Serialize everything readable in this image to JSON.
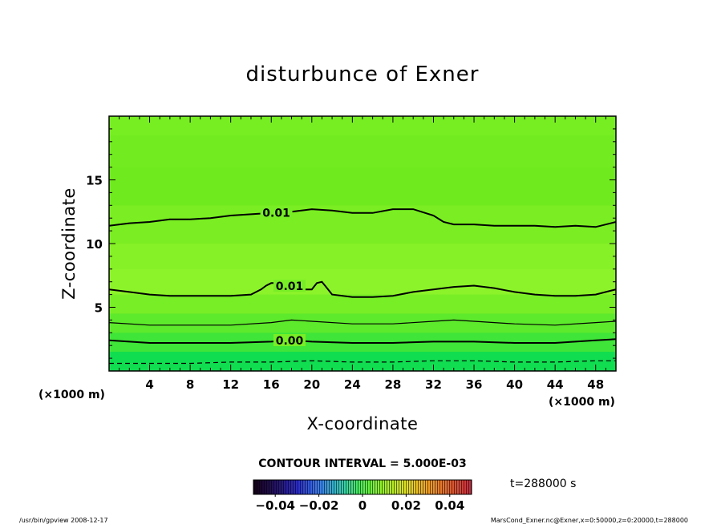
{
  "chart_data": {
    "type": "heatmap",
    "title": "disturbunce of Exner",
    "xlabel": "X-coordinate",
    "ylabel": "Z-coordinate",
    "x_unit": "(×1000 m)",
    "y_unit": "(×1000 m)",
    "xlim": [
      0,
      50
    ],
    "ylim": [
      0,
      20
    ],
    "x_ticks": [
      4,
      8,
      12,
      16,
      20,
      24,
      28,
      32,
      36,
      40,
      44,
      48
    ],
    "y_ticks": [
      5,
      10,
      15
    ],
    "contour_interval_text": "CONTOUR INTERVAL = 5.000E-03",
    "time_text": "t=288000 s",
    "contours": [
      {
        "label": "0.01",
        "level": 0.01,
        "style": "solid",
        "x": [
          0,
          2,
          4,
          6,
          8,
          10,
          12,
          14,
          16,
          18,
          20,
          22,
          24,
          26,
          28,
          30,
          32,
          33,
          34,
          36,
          38,
          40,
          42,
          44,
          46,
          48,
          50
        ],
        "y": [
          11.4,
          11.6,
          11.7,
          11.9,
          11.9,
          12.0,
          12.2,
          12.3,
          12.4,
          12.5,
          12.7,
          12.6,
          12.4,
          12.4,
          12.7,
          12.7,
          12.2,
          11.7,
          11.5,
          11.5,
          11.4,
          11.4,
          11.4,
          11.3,
          11.4,
          11.3,
          11.7
        ]
      },
      {
        "label": "0.01",
        "level": 0.01,
        "style": "solid",
        "x": [
          0,
          2,
          4,
          6,
          8,
          10,
          12,
          14,
          15,
          15.5,
          16,
          17,
          18,
          19,
          20,
          20.5,
          21,
          21.5,
          22,
          24,
          26,
          28,
          30,
          32,
          34,
          36,
          38,
          40,
          42,
          44,
          46,
          48,
          50
        ],
        "y": [
          6.4,
          6.2,
          6.0,
          5.9,
          5.9,
          5.9,
          5.9,
          6.0,
          6.4,
          6.7,
          6.9,
          6.9,
          6.6,
          6.4,
          6.4,
          6.9,
          7.0,
          6.5,
          6.0,
          5.8,
          5.8,
          5.9,
          6.2,
          6.4,
          6.6,
          6.7,
          6.5,
          6.2,
          6.0,
          5.9,
          5.9,
          6.0,
          6.4
        ]
      },
      {
        "label": "",
        "level": 0.005,
        "style": "solid",
        "x": [
          0,
          4,
          8,
          12,
          16,
          18,
          20,
          24,
          28,
          32,
          34,
          36,
          40,
          44,
          48,
          50
        ],
        "y": [
          3.8,
          3.6,
          3.6,
          3.6,
          3.8,
          4.0,
          3.9,
          3.7,
          3.7,
          3.9,
          4.0,
          3.9,
          3.7,
          3.6,
          3.8,
          3.9
        ]
      },
      {
        "label": "0.00",
        "level": 0.0,
        "style": "solid",
        "x": [
          0,
          2,
          4,
          8,
          12,
          16,
          18,
          20,
          24,
          28,
          32,
          36,
          40,
          44,
          48,
          50
        ],
        "y": [
          2.4,
          2.3,
          2.2,
          2.2,
          2.2,
          2.3,
          2.4,
          2.3,
          2.2,
          2.2,
          2.3,
          2.3,
          2.2,
          2.2,
          2.4,
          2.5
        ]
      },
      {
        "label": "",
        "level": -0.005,
        "style": "dashed",
        "x": [
          0,
          4,
          8,
          12,
          16,
          20,
          24,
          28,
          32,
          36,
          40,
          44,
          48,
          50
        ],
        "y": [
          0.6,
          0.6,
          0.6,
          0.7,
          0.7,
          0.8,
          0.7,
          0.7,
          0.8,
          0.8,
          0.7,
          0.7,
          0.8,
          0.8
        ]
      }
    ],
    "fill_bands": [
      {
        "y_top": 20,
        "color": "#77ee22"
      },
      {
        "y_top": 18.5,
        "color": "#72ec20"
      },
      {
        "y_top": 16,
        "color": "#6fea1e"
      },
      {
        "y_top": 13,
        "color": "#7aee22"
      },
      {
        "y_top": 10,
        "color": "#86f126"
      },
      {
        "y_top": 8,
        "color": "#8cf32a"
      },
      {
        "y_top": 6,
        "color": "#78ee26"
      },
      {
        "y_top": 4.5,
        "color": "#5eea2c"
      },
      {
        "y_top": 3,
        "color": "#3fe538"
      },
      {
        "y_top": 1.5,
        "color": "#22e148"
      }
    ],
    "colorbar": {
      "min": -0.05,
      "max": 0.05,
      "ticks": [
        -0.04,
        -0.02,
        0,
        0.02,
        0.04
      ],
      "tick_labels": [
        "−0.04",
        "−0.02",
        "0",
        "0.02",
        "0.04"
      ],
      "stops": [
        "#150015",
        "#241262",
        "#2b2bc8",
        "#3c7cf0",
        "#35c8b8",
        "#50f050",
        "#9cf028",
        "#e0e028",
        "#f0a028",
        "#e06030",
        "#c82840"
      ]
    }
  },
  "footer": {
    "left": "/usr/bin/gpview   2008-12-17",
    "right": "MarsCond_Exner.nc@Exner,x=0:50000,z=0:20000,t=288000"
  }
}
